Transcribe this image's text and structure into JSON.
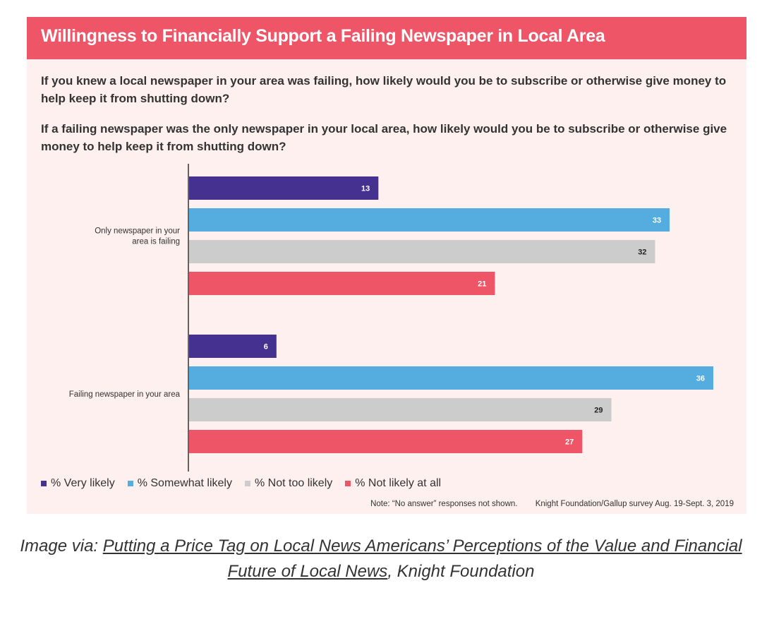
{
  "header": {
    "title": "Willingness to Financially Support a Failing Newspaper in Local Area",
    "color": "#ee5566"
  },
  "questions": [
    "If you knew a local newspaper in your area was failing, how likely would you be to subscribe or otherwise give money to help keep it from shutting down?",
    "If a failing newspaper was the only newspaper in your local area, how likely would you be to subscribe or otherwise give money to help keep it from shutting down?"
  ],
  "chart_data": {
    "type": "bar",
    "orientation": "horizontal",
    "xlim": [
      0,
      36
    ],
    "categories": [
      "Only newspaper in your area is failing",
      "Failing newspaper in your area"
    ],
    "category_lines": [
      [
        "Only newspaper in your",
        "area is failing"
      ],
      [
        "Failing newspaper in your area"
      ]
    ],
    "series": [
      {
        "name": "% Very likely",
        "color": "#45318f",
        "values": [
          13,
          6
        ]
      },
      {
        "name": "% Somewhat likely",
        "color": "#55acdf",
        "values": [
          33,
          36
        ]
      },
      {
        "name": "% Not too likely",
        "color": "#cccccc",
        "values": [
          32,
          29
        ]
      },
      {
        "name": "% Not likely at all",
        "color": "#ee5566",
        "values": [
          21,
          27
        ]
      }
    ],
    "legend_position": "bottom-left",
    "grid": false
  },
  "footer": {
    "note": "Note: “No answer” responses not shown.",
    "source": "Knight Foundation/Gallup survey Aug. 19-Sept. 3, 2019"
  },
  "caption": {
    "prefix": "Image via: ",
    "link_text": "Putting a Price Tag on Local News Americans’ Perceptions of the Value and Financial Future of Local News",
    "suffix": ", Knight Foundation"
  }
}
